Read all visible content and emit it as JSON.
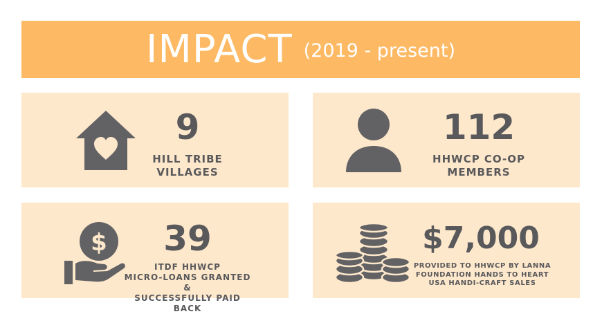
{
  "header": {
    "title": "IMPACT",
    "subtitle": "(2019 - present)"
  },
  "colors": {
    "banner": "#fdb963",
    "card": "#fee8cc",
    "text": "#59595b",
    "icon": "#626265"
  },
  "stats": [
    {
      "icon": "house-heart-icon",
      "value": "9",
      "label_lines": [
        "HILL TRIBE",
        "VILLAGES"
      ]
    },
    {
      "icon": "person-icon",
      "value": "112",
      "label_lines": [
        "HHWCP CO-OP",
        "MEMBERS"
      ]
    },
    {
      "icon": "hand-dollar-coin-icon",
      "value": "39",
      "label_lines": [
        "ITDF HHWCP",
        "MICRO-LOANS GRANTED &",
        "SUCCESSFULLY PAID BACK"
      ]
    },
    {
      "icon": "coin-stacks-icon",
      "value": "$7,000",
      "label_lines": [
        "PROVIDED TO HHWCP BY LANNA",
        "FOUNDATION HANDS TO HEART",
        "USA HANDI-CRAFT SALES"
      ]
    }
  ]
}
